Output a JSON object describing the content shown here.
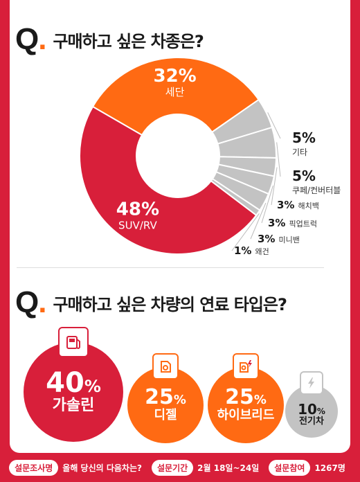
{
  "q1": {
    "prefix": "Q",
    "title": "구매하고 싶은 차종은?"
  },
  "q2": {
    "prefix": "Q",
    "title": "구매하고 싶은 차량의 연료 타입은?"
  },
  "chart_data": [
    {
      "type": "pie",
      "title": "구매하고 싶은 차종은?",
      "categories": [
        "세단",
        "기타",
        "쿠페/컨버터블",
        "해치백",
        "픽업트럭",
        "미니밴",
        "왜건",
        "SUV/RV"
      ],
      "values": [
        32,
        5,
        5,
        3,
        3,
        3,
        1,
        48
      ],
      "labels": [
        "32%",
        "5%",
        "5%",
        "3%",
        "3%",
        "3%",
        "1%",
        "48%"
      ],
      "colors": [
        "#ff6a13",
        "#c3c3c3",
        "#c3c3c3",
        "#c3c3c3",
        "#c3c3c3",
        "#c3c3c3",
        "#c3c3c3",
        "#d81f3a"
      ]
    },
    {
      "type": "bar",
      "title": "구매하고 싶은 차량의 연료 타입은?",
      "categories": [
        "가솔린",
        "디젤",
        "하이브리드",
        "전기차"
      ],
      "values": [
        40,
        25,
        25,
        10
      ],
      "colors": [
        "#d81f3a",
        "#ff6a13",
        "#ff6a13",
        "#c3c3c3"
      ]
    }
  ],
  "fuel": [
    {
      "pct": "40",
      "unit": "%",
      "name": "가솔린",
      "icon": "gas-pump-icon"
    },
    {
      "pct": "25",
      "unit": "%",
      "name": "디젤",
      "icon": "fuel-can-icon"
    },
    {
      "pct": "25",
      "unit": "%",
      "name": "하이브리드",
      "icon": "fuel-can-bolt-icon"
    },
    {
      "pct": "10",
      "unit": "%",
      "name": "전기차",
      "icon": "bolt-icon"
    }
  ],
  "footer": {
    "survey_name_label": "설문조사명",
    "survey_name": "올해 당신의 다음차는?",
    "period_label": "설문기간",
    "period": "2월 18일~24일",
    "participants_label": "설문참여",
    "participants": "1267명"
  }
}
